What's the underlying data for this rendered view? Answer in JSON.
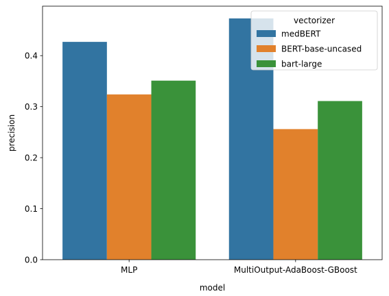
{
  "chart_data": {
    "type": "bar",
    "categories": [
      "MLP",
      "MultiOutput-AdaBoost-GBoost"
    ],
    "series": [
      {
        "name": "medBERT",
        "values": [
          0.427,
          0.473
        ],
        "color": "#3274a1"
      },
      {
        "name": "BERT-base-uncased",
        "values": [
          0.324,
          0.256
        ],
        "color": "#e1812c"
      },
      {
        "name": "bart-large",
        "values": [
          0.351,
          0.311
        ],
        "color": "#3a923a"
      }
    ],
    "xlabel": "model",
    "ylabel": "precision",
    "ylim": [
      0,
      0.497
    ],
    "yticks": [
      "0.0",
      "0.1",
      "0.2",
      "0.3",
      "0.4"
    ],
    "grid": false,
    "legend": {
      "title": "vectorizer",
      "placement": "top-right"
    }
  }
}
